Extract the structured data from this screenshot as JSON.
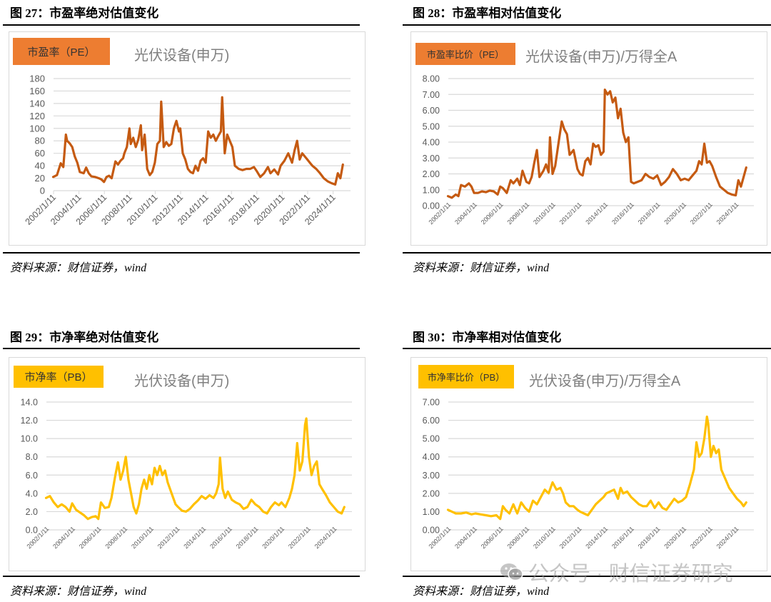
{
  "figures": [
    {
      "id": "fig27",
      "title": "图 27：市盈率绝对估值变化",
      "badge": "市盈率（PE）",
      "subtitle": "光伏设备(申万)",
      "source": "资料来源：财信证券，wind"
    },
    {
      "id": "fig28",
      "title": "图 28：市盈率相对估值变化",
      "badge": "市盈率比价（PE）",
      "subtitle": "光伏设备(申万)/万得全A",
      "source": "资料来源：财信证券，wind"
    },
    {
      "id": "fig29",
      "title": "图 29：市净率绝对估值变化",
      "badge": "市净率（PB）",
      "subtitle": "光伏设备(申万)",
      "source": "资料来源：财信证券，wind"
    },
    {
      "id": "fig30",
      "title": "图 30：市净率相对估值变化",
      "badge": "市净率比价（PB）",
      "subtitle": "光伏设备(申万)/万得全A",
      "source": "资料来源：财信证券，wind"
    }
  ],
  "watermark": "公众号 · 财信证券研究",
  "colors": {
    "pe": "#C55A11",
    "pe_badge": "#ED7D31",
    "pb": "#FFC000",
    "grid": "#D9D9D9",
    "axis_text": "#595959"
  },
  "chart_data": [
    {
      "type": "line",
      "title": "市盈率（PE） 光伏设备(申万)",
      "xlabel": "",
      "ylabel": "",
      "ylim": [
        0,
        180
      ],
      "yticks": [
        "0",
        "20",
        "40",
        "60",
        "80",
        "100",
        "120",
        "140",
        "160",
        "180"
      ],
      "categories": [
        "2002/1/11",
        "2004/1/11",
        "2006/1/11",
        "2008/1/11",
        "2010/1/11",
        "2012/1/11",
        "2014/1/11",
        "2016/1/11",
        "2018/1/11",
        "2020/1/11",
        "2022/1/11",
        "2024/1/11"
      ],
      "grid": true,
      "series": [
        {
          "name": "光伏设备(申万) PE",
          "x": [
            2002.0,
            2002.3,
            2002.6,
            2002.8,
            2003.0,
            2003.1,
            2003.3,
            2003.5,
            2003.7,
            2003.9,
            2004.1,
            2004.4,
            2004.6,
            2004.8,
            2005.0,
            2005.3,
            2005.6,
            2005.8,
            2006.0,
            2006.2,
            2006.4,
            2006.6,
            2006.9,
            2007.1,
            2007.3,
            2007.5,
            2007.6,
            2007.8,
            2008.0,
            2008.1,
            2008.3,
            2008.5,
            2008.7,
            2008.9,
            2009.0,
            2009.2,
            2009.4,
            2009.6,
            2009.8,
            2010.0,
            2010.2,
            2010.4,
            2010.5,
            2010.7,
            2010.9,
            2011.1,
            2011.3,
            2011.5,
            2011.7,
            2011.9,
            2012.0,
            2012.2,
            2012.4,
            2012.6,
            2012.8,
            2013.0,
            2013.2,
            2013.4,
            2013.6,
            2013.8,
            2014.0,
            2014.2,
            2014.4,
            2014.6,
            2014.8,
            2015.0,
            2015.2,
            2015.3,
            2015.5,
            2015.7,
            2015.9,
            2016.1,
            2016.3,
            2016.6,
            2016.9,
            2017.2,
            2017.5,
            2017.8,
            2018.0,
            2018.3,
            2018.6,
            2018.9,
            2019.1,
            2019.4,
            2019.7,
            2019.9,
            2020.2,
            2020.5,
            2020.8,
            2021.0,
            2021.2,
            2021.4,
            2021.6,
            2021.8,
            2022.0,
            2022.2,
            2022.4,
            2022.7,
            2023.0,
            2023.3,
            2023.6,
            2023.9,
            2024.2,
            2024.4,
            2024.6,
            2024.8
          ],
          "values": [
            22,
            25,
            44,
            38,
            90,
            80,
            76,
            70,
            55,
            45,
            30,
            28,
            37,
            28,
            23,
            22,
            20,
            18,
            14,
            22,
            24,
            20,
            47,
            42,
            48,
            52,
            60,
            70,
            100,
            75,
            85,
            70,
            82,
            105,
            65,
            90,
            35,
            25,
            30,
            45,
            75,
            80,
            143,
            70,
            78,
            72,
            75,
            100,
            112,
            95,
            100,
            60,
            50,
            35,
            30,
            28,
            40,
            32,
            48,
            52,
            45,
            95,
            85,
            90,
            80,
            88,
            95,
            150,
            60,
            90,
            80,
            70,
            40,
            35,
            33,
            35,
            35,
            38,
            32,
            22,
            28,
            38,
            28,
            34,
            26,
            40,
            48,
            60,
            45,
            65,
            80,
            50,
            60,
            55,
            50,
            45,
            40,
            35,
            28,
            20,
            15,
            12,
            10,
            28,
            20,
            42
          ]
        }
      ]
    },
    {
      "type": "line",
      "title": "市盈率比价（PE） 光伏设备(申万)/万得全A",
      "xlabel": "",
      "ylabel": "",
      "ylim": [
        0,
        8
      ],
      "yticks": [
        "0.00",
        "1.00",
        "2.00",
        "3.00",
        "4.00",
        "5.00",
        "6.00",
        "7.00",
        "8.00"
      ],
      "categories": [
        "2002/1/11",
        "2004/1/11",
        "2006/1/11",
        "2008/1/11",
        "2010/1/11",
        "2012/1/11",
        "2014/1/11",
        "2016/1/11",
        "2018/1/11",
        "2020/1/11",
        "2022/1/11",
        "2024/1/11"
      ],
      "grid": true,
      "series": [
        {
          "name": "光伏设备(申万)/万得全A PE",
          "x": [
            2002.0,
            2002.3,
            2002.6,
            2002.8,
            2003.0,
            2003.3,
            2003.6,
            2003.8,
            2004.0,
            2004.3,
            2004.6,
            2004.9,
            2005.2,
            2005.5,
            2005.8,
            2006.0,
            2006.2,
            2006.5,
            2006.8,
            2007.0,
            2007.3,
            2007.5,
            2007.7,
            2008.0,
            2008.2,
            2008.4,
            2008.6,
            2008.8,
            2009.0,
            2009.3,
            2009.5,
            2009.7,
            2009.8,
            2010.0,
            2010.2,
            2010.5,
            2010.7,
            2010.9,
            2011.1,
            2011.3,
            2011.6,
            2011.9,
            2012.1,
            2012.3,
            2012.5,
            2012.7,
            2012.9,
            2013.1,
            2013.3,
            2013.5,
            2013.7,
            2013.9,
            2014.0,
            2014.2,
            2014.4,
            2014.6,
            2014.8,
            2015.0,
            2015.2,
            2015.4,
            2015.6,
            2015.8,
            2016.0,
            2016.2,
            2016.5,
            2016.8,
            2017.1,
            2017.4,
            2017.7,
            2018.0,
            2018.3,
            2018.6,
            2018.9,
            2019.2,
            2019.5,
            2019.8,
            2020.1,
            2020.4,
            2020.7,
            2021.0,
            2021.2,
            2021.4,
            2021.6,
            2021.8,
            2022.0,
            2022.2,
            2022.5,
            2022.8,
            2023.1,
            2023.4,
            2023.7,
            2024.0,
            2024.2,
            2024.4,
            2024.6,
            2024.8
          ],
          "values": [
            0.6,
            0.5,
            0.7,
            0.6,
            1.3,
            1.2,
            1.4,
            1.2,
            0.8,
            0.8,
            0.9,
            0.85,
            0.95,
            0.9,
            0.7,
            1.2,
            1.1,
            0.8,
            1.6,
            1.4,
            1.7,
            1.3,
            2.2,
            1.5,
            1.4,
            1.8,
            2.7,
            3.5,
            1.8,
            2.2,
            2.6,
            2.1,
            4.3,
            2.0,
            2.5,
            4.2,
            5.3,
            4.8,
            4.5,
            3.2,
            3.5,
            2.3,
            2.0,
            1.9,
            2.8,
            3.0,
            2.6,
            3.9,
            3.7,
            3.8,
            3.2,
            3.4,
            7.3,
            7.0,
            7.2,
            6.5,
            6.8,
            5.5,
            6.1,
            4.6,
            4.0,
            4.3,
            1.5,
            1.4,
            1.5,
            1.6,
            2.0,
            1.8,
            1.7,
            1.9,
            1.3,
            1.5,
            1.8,
            2.3,
            2.0,
            1.6,
            1.7,
            1.6,
            1.9,
            2.2,
            2.8,
            2.6,
            3.9,
            2.7,
            2.8,
            2.5,
            1.8,
            1.2,
            1.0,
            0.8,
            0.7,
            0.65,
            1.6,
            1.2,
            1.8,
            2.4
          ]
        }
      ]
    },
    {
      "type": "line",
      "title": "市净率（PB） 光伏设备(申万)",
      "xlabel": "",
      "ylabel": "",
      "ylim": [
        0,
        14
      ],
      "yticks": [
        "0.0",
        "2.0",
        "4.0",
        "6.0",
        "8.0",
        "10.0",
        "12.0",
        "14.0"
      ],
      "categories": [
        "2002/1/11",
        "2004/1/11",
        "2006/1/11",
        "2008/1/11",
        "2010/1/11",
        "2012/1/11",
        "2014/1/11",
        "2016/1/11",
        "2018/1/11",
        "2020/1/11",
        "2022/1/11",
        "2024/1/11"
      ],
      "grid": true,
      "series": [
        {
          "name": "光伏设备(申万) PB",
          "x": [
            2002.0,
            2002.3,
            2002.6,
            2002.9,
            2003.2,
            2003.5,
            2003.8,
            2004.0,
            2004.3,
            2004.6,
            2004.9,
            2005.2,
            2005.5,
            2005.8,
            2006.0,
            2006.2,
            2006.5,
            2006.8,
            2007.0,
            2007.3,
            2007.5,
            2007.7,
            2007.9,
            2008.1,
            2008.3,
            2008.5,
            2008.7,
            2008.9,
            2009.1,
            2009.3,
            2009.5,
            2009.7,
            2009.9,
            2010.1,
            2010.3,
            2010.5,
            2010.7,
            2010.9,
            2011.1,
            2011.3,
            2011.6,
            2011.9,
            2012.1,
            2012.4,
            2012.7,
            2013.0,
            2013.3,
            2013.6,
            2013.9,
            2014.2,
            2014.5,
            2014.8,
            2015.0,
            2015.2,
            2015.3,
            2015.5,
            2015.7,
            2015.9,
            2016.2,
            2016.5,
            2016.8,
            2017.1,
            2017.4,
            2017.7,
            2018.0,
            2018.3,
            2018.6,
            2018.9,
            2019.2,
            2019.5,
            2019.8,
            2020.0,
            2020.3,
            2020.6,
            2020.8,
            2021.0,
            2021.2,
            2021.4,
            2021.6,
            2021.8,
            2021.9,
            2022.1,
            2022.3,
            2022.5,
            2022.7,
            2022.9,
            2023.1,
            2023.4,
            2023.7,
            2024.0,
            2024.3,
            2024.6,
            2024.8
          ],
          "values": [
            3.5,
            3.7,
            3.0,
            2.5,
            2.8,
            2.5,
            2.0,
            2.9,
            2.2,
            1.9,
            1.6,
            1.2,
            1.4,
            1.5,
            1.2,
            3.0,
            2.4,
            2.5,
            3.5,
            6.0,
            7.4,
            5.5,
            6.5,
            8.0,
            5.5,
            4.0,
            2.5,
            1.8,
            2.8,
            4.5,
            5.5,
            4.5,
            6.0,
            5.0,
            6.8,
            6.0,
            7.0,
            6.0,
            6.5,
            5.2,
            4.0,
            2.8,
            2.5,
            2.1,
            2.0,
            2.3,
            2.8,
            3.2,
            3.7,
            3.4,
            3.8,
            3.5,
            4.0,
            5.0,
            7.9,
            4.5,
            3.5,
            4.2,
            3.3,
            3.0,
            2.8,
            2.3,
            2.5,
            3.3,
            2.8,
            2.5,
            2.0,
            1.8,
            2.5,
            3.0,
            2.7,
            3.0,
            2.5,
            3.5,
            4.5,
            6.0,
            9.5,
            6.5,
            7.5,
            11.5,
            12.2,
            8.0,
            6.0,
            7.0,
            7.5,
            5.0,
            4.5,
            3.8,
            3.0,
            2.5,
            2.0,
            1.8,
            2.5
          ]
        }
      ]
    },
    {
      "type": "line",
      "title": "市净率比价（PB） 光伏设备(申万)/万得全A",
      "xlabel": "",
      "ylabel": "",
      "ylim": [
        0,
        7
      ],
      "yticks": [
        "0.00",
        "1.00",
        "2.00",
        "3.00",
        "4.00",
        "5.00",
        "6.00",
        "7.00"
      ],
      "categories": [
        "2002/1/11",
        "2004/1/11",
        "2006/1/11",
        "2008/1/11",
        "2010/1/11",
        "2012/1/11",
        "2014/1/11",
        "2016/1/11",
        "2018/1/11",
        "2020/1/11",
        "2022/1/11",
        "2024/1/11"
      ],
      "grid": true,
      "series": [
        {
          "name": "光伏设备(申万)/万得全A PB",
          "x": [
            2002.0,
            2002.3,
            2002.6,
            2003.0,
            2003.4,
            2003.8,
            2004.1,
            2004.5,
            2004.9,
            2005.3,
            2005.7,
            2006.0,
            2006.2,
            2006.4,
            2006.7,
            2007.0,
            2007.3,
            2007.6,
            2007.9,
            2008.2,
            2008.5,
            2008.8,
            2009.1,
            2009.4,
            2009.7,
            2010.0,
            2010.3,
            2010.6,
            2010.8,
            2011.0,
            2011.3,
            2011.6,
            2011.9,
            2012.1,
            2012.4,
            2012.7,
            2013.0,
            2013.3,
            2013.6,
            2013.9,
            2014.1,
            2014.4,
            2014.7,
            2015.0,
            2015.2,
            2015.4,
            2015.7,
            2016.0,
            2016.3,
            2016.6,
            2016.9,
            2017.2,
            2017.5,
            2017.8,
            2018.1,
            2018.4,
            2018.7,
            2019.0,
            2019.3,
            2019.6,
            2019.9,
            2020.2,
            2020.5,
            2020.8,
            2021.0,
            2021.2,
            2021.4,
            2021.6,
            2021.8,
            2021.9,
            2022.1,
            2022.3,
            2022.5,
            2022.7,
            2022.9,
            2023.2,
            2023.5,
            2023.8,
            2024.1,
            2024.4,
            2024.6,
            2024.8
          ],
          "values": [
            1.1,
            1.0,
            0.9,
            0.9,
            0.95,
            0.85,
            0.9,
            0.85,
            0.8,
            0.75,
            0.8,
            0.6,
            1.3,
            1.1,
            0.9,
            1.4,
            0.9,
            1.5,
            1.2,
            1.0,
            1.6,
            1.4,
            1.8,
            2.2,
            2.0,
            2.6,
            2.2,
            2.3,
            2.0,
            1.5,
            1.3,
            1.3,
            1.1,
            1.0,
            0.9,
            0.8,
            1.1,
            1.4,
            1.6,
            1.8,
            2.0,
            2.1,
            2.2,
            1.7,
            2.3,
            2.0,
            2.1,
            1.8,
            1.6,
            1.4,
            1.3,
            1.3,
            1.6,
            1.2,
            1.5,
            1.2,
            1.1,
            1.4,
            1.7,
            1.5,
            1.6,
            1.8,
            2.5,
            3.3,
            4.8,
            4.0,
            4.2,
            5.0,
            6.2,
            5.8,
            4.0,
            4.6,
            4.2,
            4.4,
            3.3,
            2.8,
            2.3,
            2.0,
            1.7,
            1.5,
            1.3,
            1.5
          ]
        }
      ]
    }
  ]
}
